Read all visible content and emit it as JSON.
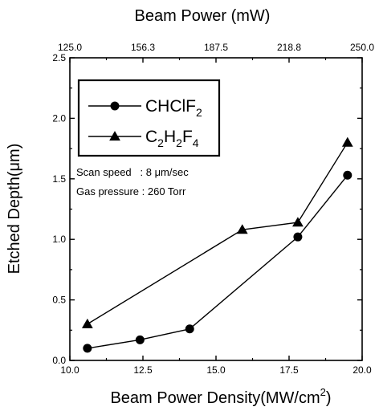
{
  "chart_data": {
    "type": "line",
    "x_label": "Beam Power Density(MW/cm",
    "x_label_sup": "2",
    "x_label_end": ")",
    "y_label": "Etched Depth(μm)",
    "top_label": "Beam Power (mW)",
    "xlim": [
      10.0,
      20.0
    ],
    "ylim": [
      0.0,
      2.5
    ],
    "x_ticks": [
      "10.0",
      "12.5",
      "15.0",
      "17.5",
      "20.0"
    ],
    "y_ticks": [
      "0.0",
      "0.5",
      "1.0",
      "1.5",
      "2.0",
      "2.5"
    ],
    "top_ticks": [
      "125.0",
      "156.3",
      "187.5",
      "218.8",
      "250.0"
    ],
    "series": [
      {
        "name": "CHClF2",
        "marker": "circle",
        "x": [
          10.6,
          12.4,
          14.1,
          17.8,
          19.5
        ],
        "y": [
          0.1,
          0.17,
          0.26,
          1.02,
          1.53
        ]
      },
      {
        "name": "C2H2F4",
        "marker": "triangle",
        "x": [
          10.6,
          15.9,
          17.8,
          19.5
        ],
        "y": [
          0.3,
          1.08,
          1.14,
          1.8
        ]
      }
    ],
    "legend": {
      "placement": "top-left",
      "entries": [
        {
          "parts": [
            [
              "CHClF",
              ""
            ],
            [
              "2",
              "sub"
            ]
          ]
        },
        {
          "parts": [
            [
              "C",
              ""
            ],
            [
              "2",
              "sub"
            ],
            [
              "H",
              ""
            ],
            [
              "2",
              "sub"
            ],
            [
              "F",
              ""
            ],
            [
              "4",
              "sub"
            ]
          ]
        }
      ]
    },
    "annotations": [
      "Scan speed   : 8 μm/sec",
      "Gas pressure : 260 Torr"
    ],
    "grid": false
  }
}
